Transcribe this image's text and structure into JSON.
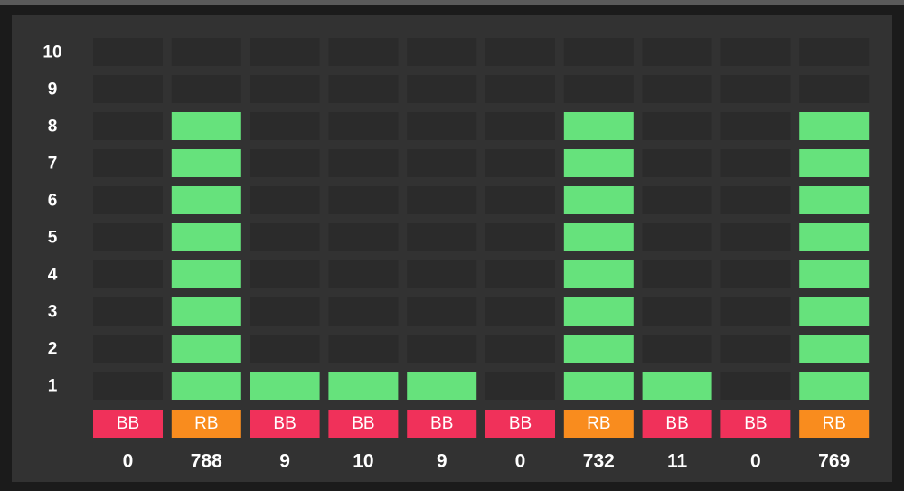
{
  "chart_data": {
    "type": "segmented-bar",
    "categories": [
      "BB",
      "RB",
      "BB",
      "BB",
      "BB",
      "BB",
      "RB",
      "BB",
      "BB",
      "RB"
    ],
    "category_colors": [
      "#f0315a",
      "#f98c1e",
      "#f0315a",
      "#f0315a",
      "#f0315a",
      "#f0315a",
      "#f98c1e",
      "#f0315a",
      "#f0315a",
      "#f98c1e"
    ],
    "values": [
      0,
      8,
      1,
      1,
      1,
      0,
      8,
      1,
      0,
      8
    ],
    "color": "#66e27c",
    "counts": [
      0,
      788,
      9,
      10,
      9,
      0,
      732,
      11,
      0,
      769
    ],
    "ylim": [
      0.5,
      10.5
    ],
    "yticks": [
      1,
      2,
      3,
      4,
      5,
      6,
      7,
      8,
      9,
      10
    ]
  }
}
